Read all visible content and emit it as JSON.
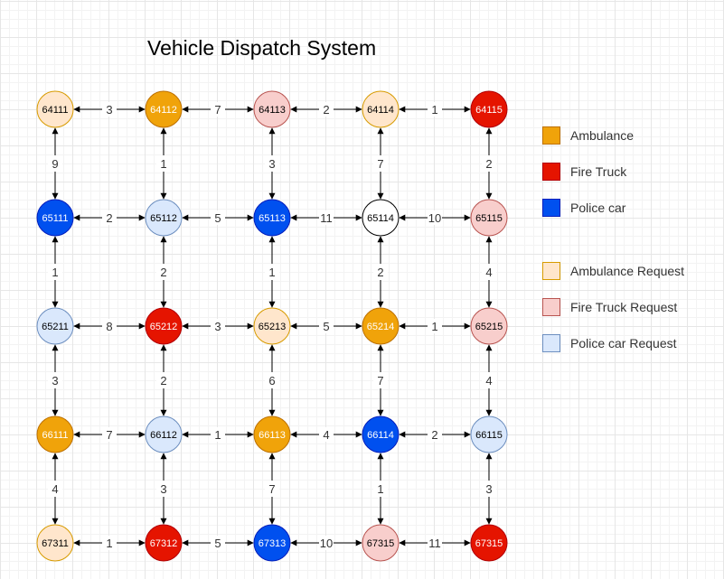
{
  "title": "Vehicle Dispatch System",
  "colors": {
    "ambulance": {
      "fill": "#f0a30a",
      "stroke": "#bd7000",
      "text": "#ffffff"
    },
    "fire_truck": {
      "fill": "#e51400",
      "stroke": "#b20000",
      "text": "#ffffff"
    },
    "police_car": {
      "fill": "#0050ef",
      "stroke": "#001dbc",
      "text": "#ffffff"
    },
    "ambulance_request": {
      "fill": "#ffe6cc",
      "stroke": "#d79b00",
      "text": "#000000"
    },
    "fire_truck_request": {
      "fill": "#f8cecc",
      "stroke": "#b85450",
      "text": "#000000"
    },
    "police_car_request": {
      "fill": "#dae8fc",
      "stroke": "#6c8ebf",
      "text": "#000000"
    },
    "plain": {
      "fill": "#ffffff",
      "stroke": "#000000",
      "text": "#000000"
    }
  },
  "legend": [
    {
      "label": "Ambulance",
      "kind": "ambulance"
    },
    {
      "label": "Fire Truck",
      "kind": "fire_truck"
    },
    {
      "label": "Police car",
      "kind": "police_car"
    },
    {
      "label": "Ambulance Request",
      "kind": "ambulance_request"
    },
    {
      "label": "Fire Truck Request",
      "kind": "fire_truck_request"
    },
    {
      "label": "Police car Request",
      "kind": "police_car_request"
    }
  ],
  "nodes": [
    [
      {
        "id": "64111",
        "kind": "ambulance_request"
      },
      {
        "id": "64112",
        "kind": "ambulance"
      },
      {
        "id": "64113",
        "kind": "fire_truck_request"
      },
      {
        "id": "64114",
        "kind": "ambulance_request"
      },
      {
        "id": "64115",
        "kind": "fire_truck"
      }
    ],
    [
      {
        "id": "65111",
        "kind": "police_car"
      },
      {
        "id": "65112",
        "kind": "police_car_request"
      },
      {
        "id": "65113",
        "kind": "police_car"
      },
      {
        "id": "65114",
        "kind": "plain"
      },
      {
        "id": "65115",
        "kind": "fire_truck_request"
      }
    ],
    [
      {
        "id": "65211",
        "kind": "police_car_request"
      },
      {
        "id": "65212",
        "kind": "fire_truck"
      },
      {
        "id": "65213",
        "kind": "ambulance_request"
      },
      {
        "id": "65214",
        "kind": "ambulance"
      },
      {
        "id": "65215",
        "kind": "fire_truck_request"
      }
    ],
    [
      {
        "id": "66111",
        "kind": "ambulance"
      },
      {
        "id": "66112",
        "kind": "police_car_request"
      },
      {
        "id": "66113",
        "kind": "ambulance"
      },
      {
        "id": "66114",
        "kind": "police_car"
      },
      {
        "id": "66115",
        "kind": "police_car_request"
      }
    ],
    [
      {
        "id": "67311",
        "kind": "ambulance_request"
      },
      {
        "id": "67312",
        "kind": "fire_truck"
      },
      {
        "id": "67313",
        "kind": "police_car"
      },
      {
        "id": "67315",
        "kind": "fire_truck_request"
      },
      {
        "id": "67315",
        "kind": "fire_truck"
      }
    ]
  ],
  "horizontal_weights": [
    [
      "3",
      "7",
      "2",
      "1"
    ],
    [
      "2",
      "5",
      "11",
      "10"
    ],
    [
      "8",
      "3",
      "5",
      "1"
    ],
    [
      "7",
      "1",
      "4",
      "2"
    ],
    [
      "1",
      "5",
      "10",
      "11"
    ]
  ],
  "vertical_weights": [
    [
      "9",
      "1",
      "3",
      "7",
      "2"
    ],
    [
      "1",
      "2",
      "1",
      "2",
      "4"
    ],
    [
      "3",
      "2",
      "6",
      "7",
      "4"
    ],
    [
      "4",
      "3",
      "7",
      "1",
      "3"
    ]
  ]
}
